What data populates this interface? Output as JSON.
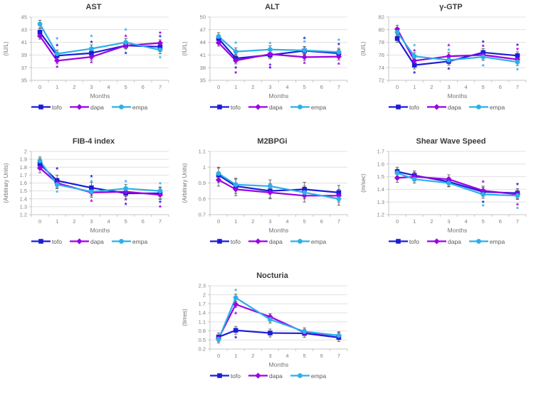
{
  "page": {
    "background": "#ffffff"
  },
  "palette": {
    "tofo": "#1c1cd9",
    "dapa": "#9b00e6",
    "empa": "#2bb0e8",
    "grid_line": "#e1e1e1",
    "axis_line": "#c6c6c6",
    "tick_label": "#7f7f7f",
    "axis_title": "#737373",
    "chart_title": "#3b3b3b",
    "error_bar": "#5a5a5a",
    "legend_text": "#595959"
  },
  "legend_labels": [
    "tofo",
    "dapa",
    "empa"
  ],
  "chart_data": [
    {
      "type": "line",
      "title": "AST",
      "ylabel": "(IU/L)",
      "xlabel": "Months",
      "x": [
        0,
        1,
        3,
        5,
        7
      ],
      "xticks": [
        0,
        1,
        2,
        3,
        4,
        5,
        6,
        7
      ],
      "ylim": [
        35,
        45
      ],
      "ystep": 2,
      "grid": true,
      "legend_position": "bottom",
      "series": [
        {
          "name": "tofo",
          "color": "#1c1cd9",
          "marker": "square",
          "values": [
            42.6,
            38.9,
            39.3,
            40.5,
            40.3
          ],
          "err": 0.55
        },
        {
          "name": "dapa",
          "color": "#9b00e6",
          "marker": "diamond",
          "values": [
            42.0,
            38.1,
            38.7,
            40.5,
            40.9
          ],
          "err": 0.5
        },
        {
          "name": "empa",
          "color": "#2bb0e8",
          "marker": "circle",
          "values": [
            43.9,
            39.2,
            40.0,
            41.0,
            39.8
          ],
          "err": 0.6
        }
      ],
      "sig_markers": [
        {
          "x": 1,
          "y": 41.6,
          "series": "empa"
        },
        {
          "x": 1,
          "y": 40.5,
          "series": "tofo"
        },
        {
          "x": 1,
          "y": 37.1,
          "series": "dapa"
        },
        {
          "x": 3,
          "y": 42.0,
          "series": "empa"
        },
        {
          "x": 3,
          "y": 41.0,
          "series": "tofo"
        },
        {
          "x": 3,
          "y": 37.8,
          "series": "dapa"
        },
        {
          "x": 5,
          "y": 43.0,
          "series": "empa"
        },
        {
          "x": 5,
          "y": 42.0,
          "series": "dapa"
        },
        {
          "x": 5,
          "y": 39.3,
          "series": "tofo"
        },
        {
          "x": 7,
          "y": 42.5,
          "series": "dapa"
        },
        {
          "x": 7,
          "y": 41.9,
          "series": "tofo"
        },
        {
          "x": 7,
          "y": 38.6,
          "series": "empa"
        }
      ]
    },
    {
      "type": "line",
      "title": "ALT",
      "ylabel": "(IU/L)",
      "xlabel": "Months",
      "x": [
        0,
        1,
        3,
        5,
        7
      ],
      "xticks": [
        0,
        1,
        2,
        3,
        4,
        5,
        6,
        7
      ],
      "ylim": [
        35,
        50
      ],
      "ystep": 3,
      "grid": true,
      "legend_position": "bottom",
      "series": [
        {
          "name": "tofo",
          "color": "#1c1cd9",
          "marker": "square",
          "values": [
            44.9,
            40.2,
            41.0,
            42.0,
            41.4
          ],
          "err": 0.9
        },
        {
          "name": "dapa",
          "color": "#9b00e6",
          "marker": "diamond",
          "values": [
            43.9,
            39.7,
            41.2,
            40.5,
            40.6
          ],
          "err": 0.8
        },
        {
          "name": "empa",
          "color": "#2bb0e8",
          "marker": "circle",
          "values": [
            45.4,
            41.8,
            42.3,
            42.1,
            41.7
          ],
          "err": 0.9
        }
      ],
      "sig_markers": [
        {
          "x": 1,
          "y": 43.9,
          "series": "empa"
        },
        {
          "x": 1,
          "y": 38.0,
          "series": "tofo"
        },
        {
          "x": 1,
          "y": 36.8,
          "series": "dapa"
        },
        {
          "x": 3,
          "y": 43.8,
          "series": "empa"
        },
        {
          "x": 3,
          "y": 38.6,
          "series": "dapa"
        },
        {
          "x": 3,
          "y": 38.0,
          "series": "tofo"
        },
        {
          "x": 5,
          "y": 45.0,
          "series": "tofo"
        },
        {
          "x": 5,
          "y": 44.1,
          "series": "empa"
        },
        {
          "x": 5,
          "y": 39.1,
          "series": "dapa"
        },
        {
          "x": 7,
          "y": 44.5,
          "series": "empa"
        },
        {
          "x": 7,
          "y": 43.5,
          "series": "tofo"
        },
        {
          "x": 7,
          "y": 38.9,
          "series": "dapa"
        }
      ]
    },
    {
      "type": "line",
      "title": "γ-GTP",
      "ylabel": "(IU/L)",
      "xlabel": "Months",
      "x": [
        0,
        1,
        3,
        5,
        7
      ],
      "xticks": [
        0,
        1,
        2,
        3,
        4,
        5,
        6,
        7
      ],
      "ylim": [
        72,
        82
      ],
      "ystep": 2,
      "grid": true,
      "legend_position": "bottom",
      "series": [
        {
          "name": "tofo",
          "color": "#1c1cd9",
          "marker": "square",
          "values": [
            78.6,
            74.4,
            75.0,
            76.4,
            75.9
          ],
          "err": 0.6
        },
        {
          "name": "dapa",
          "color": "#9b00e6",
          "marker": "diamond",
          "values": [
            80.1,
            75.1,
            75.8,
            76.0,
            75.3
          ],
          "err": 0.6
        },
        {
          "name": "empa",
          "color": "#2bb0e8",
          "marker": "circle",
          "values": [
            79.6,
            75.8,
            75.2,
            75.7,
            74.9
          ],
          "err": 0.55
        }
      ],
      "sig_markers": [
        {
          "x": 1,
          "y": 77.5,
          "series": "empa"
        },
        {
          "x": 1,
          "y": 76.7,
          "series": "dapa"
        },
        {
          "x": 1,
          "y": 73.2,
          "series": "tofo"
        },
        {
          "x": 3,
          "y": 77.5,
          "series": "dapa"
        },
        {
          "x": 3,
          "y": 76.8,
          "series": "empa"
        },
        {
          "x": 3,
          "y": 73.8,
          "series": "tofo"
        },
        {
          "x": 5,
          "y": 78.1,
          "series": "tofo"
        },
        {
          "x": 5,
          "y": 77.4,
          "series": "dapa"
        },
        {
          "x": 5,
          "y": 74.3,
          "series": "empa"
        },
        {
          "x": 7,
          "y": 77.6,
          "series": "tofo"
        },
        {
          "x": 7,
          "y": 76.9,
          "series": "dapa"
        },
        {
          "x": 7,
          "y": 73.7,
          "series": "empa"
        }
      ]
    },
    {
      "type": "line",
      "title": "FIB-4 index",
      "ylabel": "(Arbitrary Units)",
      "xlabel": "Months",
      "x": [
        0,
        1,
        3,
        5,
        7
      ],
      "xticks": [
        0,
        1,
        2,
        3,
        4,
        5,
        6,
        7
      ],
      "ylim": [
        1.2,
        2.0
      ],
      "ystep": 0.1,
      "grid": true,
      "legend_position": "bottom",
      "series": [
        {
          "name": "tofo",
          "color": "#1c1cd9",
          "marker": "square",
          "values": [
            1.84,
            1.63,
            1.54,
            1.47,
            1.47
          ],
          "err": 0.07
        },
        {
          "name": "dapa",
          "color": "#9b00e6",
          "marker": "diamond",
          "values": [
            1.79,
            1.6,
            1.48,
            1.49,
            1.45
          ],
          "err": 0.06
        },
        {
          "name": "empa",
          "color": "#2bb0e8",
          "marker": "circle",
          "values": [
            1.88,
            1.58,
            1.49,
            1.53,
            1.5
          ],
          "err": 0.05
        }
      ],
      "sig_markers": [
        {
          "x": 1,
          "y": 1.78,
          "series": "tofo"
        },
        {
          "x": 1,
          "y": 1.49,
          "series": "empa"
        },
        {
          "x": 3,
          "y": 1.68,
          "series": "tofo"
        },
        {
          "x": 3,
          "y": 1.62,
          "series": "empa"
        },
        {
          "x": 3,
          "y": 1.37,
          "series": "dapa"
        },
        {
          "x": 5,
          "y": 1.62,
          "series": "empa"
        },
        {
          "x": 5,
          "y": 1.39,
          "series": "dapa"
        },
        {
          "x": 5,
          "y": 1.33,
          "series": "tofo"
        },
        {
          "x": 7,
          "y": 1.59,
          "series": "empa"
        },
        {
          "x": 7,
          "y": 1.36,
          "series": "tofo"
        },
        {
          "x": 7,
          "y": 1.3,
          "series": "dapa"
        }
      ]
    },
    {
      "type": "line",
      "title": "M2BPGi",
      "ylabel": "(Arbitrary Units)",
      "xlabel": "Months",
      "x": [
        0,
        1,
        3,
        5,
        7
      ],
      "xticks": [
        0,
        1,
        2,
        3,
        4,
        5,
        6,
        7
      ],
      "ylim": [
        0.7,
        1.1
      ],
      "ystep": 0.1,
      "grid": true,
      "legend_position": "bottom",
      "series": [
        {
          "name": "tofo",
          "color": "#1c1cd9",
          "marker": "square",
          "values": [
            0.95,
            0.88,
            0.85,
            0.86,
            0.84
          ],
          "err": 0.045
        },
        {
          "name": "dapa",
          "color": "#9b00e6",
          "marker": "diamond",
          "values": [
            0.92,
            0.86,
            0.84,
            0.82,
            0.82
          ],
          "err": 0.04
        },
        {
          "name": "empa",
          "color": "#2bb0e8",
          "marker": "circle",
          "values": [
            0.96,
            0.89,
            0.88,
            0.84,
            0.8
          ],
          "err": 0.04
        }
      ],
      "sig_markers": []
    },
    {
      "type": "line",
      "title": "Shear Wave Speed",
      "ylabel": "(m/sec)",
      "xlabel": "Months",
      "x": [
        0,
        1,
        3,
        5,
        7
      ],
      "xticks": [
        0,
        1,
        2,
        3,
        4,
        5,
        6,
        7
      ],
      "ylim": [
        1.2,
        1.7
      ],
      "ystep": 0.1,
      "grid": true,
      "legend_position": "bottom",
      "series": [
        {
          "name": "tofo",
          "color": "#1c1cd9",
          "marker": "square",
          "values": [
            1.54,
            1.51,
            1.46,
            1.38,
            1.37
          ],
          "err": 0.035
        },
        {
          "name": "dapa",
          "color": "#9b00e6",
          "marker": "diamond",
          "values": [
            1.49,
            1.5,
            1.48,
            1.39,
            1.36
          ],
          "err": 0.035
        },
        {
          "name": "empa",
          "color": "#2bb0e8",
          "marker": "circle",
          "values": [
            1.53,
            1.48,
            1.45,
            1.36,
            1.35
          ],
          "err": 0.03
        }
      ],
      "sig_markers": [
        {
          "x": 5,
          "y": 1.46,
          "series": "dapa"
        },
        {
          "x": 5,
          "y": 1.3,
          "series": "tofo"
        },
        {
          "x": 5,
          "y": 1.27,
          "series": "empa"
        },
        {
          "x": 7,
          "y": 1.44,
          "series": "tofo"
        },
        {
          "x": 7,
          "y": 1.28,
          "series": "dapa"
        },
        {
          "x": 7,
          "y": 1.25,
          "series": "empa"
        }
      ]
    },
    {
      "type": "line",
      "title": "Nocturia",
      "ylabel": "(times)",
      "xlabel": "Months",
      "x": [
        0,
        1,
        3,
        5,
        7
      ],
      "xticks": [
        0,
        1,
        2,
        3,
        4,
        5,
        6,
        7
      ],
      "ylim": [
        0.2,
        2.3
      ],
      "ystep": 0.3,
      "grid": true,
      "legend_position": "bottom",
      "series": [
        {
          "name": "tofo",
          "color": "#1c1cd9",
          "marker": "square",
          "values": [
            0.6,
            0.82,
            0.73,
            0.72,
            0.58
          ],
          "err": 0.13
        },
        {
          "name": "dapa",
          "color": "#9b00e6",
          "marker": "diamond",
          "values": [
            0.55,
            1.68,
            1.27,
            0.75,
            0.65
          ],
          "err": 0.1
        },
        {
          "name": "empa",
          "color": "#2bb0e8",
          "marker": "circle",
          "values": [
            0.52,
            1.9,
            1.18,
            0.78,
            0.65
          ],
          "err": 0.12
        }
      ],
      "sig_markers": [
        {
          "x": 1,
          "y": 2.15,
          "series": "empa"
        },
        {
          "x": 1,
          "y": 1.38,
          "series": "dapa"
        },
        {
          "x": 1,
          "y": 0.58,
          "series": "tofo"
        }
      ]
    }
  ]
}
